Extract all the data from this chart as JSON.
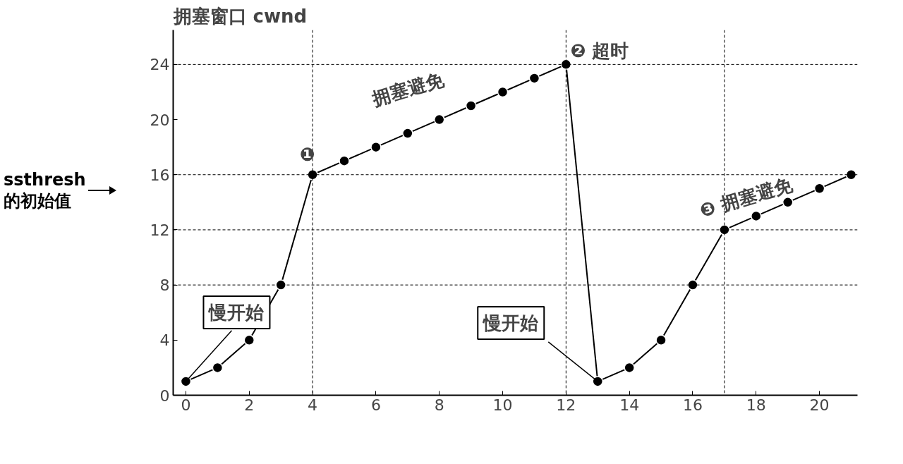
{
  "chart_data": {
    "type": "line",
    "ylabel": "拥塞窗口 cwnd",
    "x": [
      0,
      1,
      2,
      3,
      4,
      5,
      6,
      7,
      8,
      9,
      10,
      11,
      12,
      13,
      14,
      15,
      16,
      17,
      18,
      19,
      20,
      21
    ],
    "series": [
      {
        "color": "#000000",
        "values": [
          1,
          2,
          4,
          8,
          16,
          17,
          18,
          19,
          20,
          21,
          22,
          23,
          24,
          1,
          2,
          4,
          8,
          12,
          13,
          14,
          15,
          16
        ]
      }
    ],
    "xlim": [
      -0.4,
      21.2
    ],
    "ylim": [
      0,
      26.5
    ],
    "xticks": [
      0,
      2,
      4,
      6,
      8,
      10,
      12,
      14,
      16,
      18,
      20
    ],
    "yticks": [
      0,
      4,
      8,
      12,
      16,
      20,
      24
    ],
    "ref_lines": [
      {
        "axis": "y",
        "value": 24,
        "line_style": "dashed"
      },
      {
        "axis": "y",
        "value": 16,
        "line_style": "dashed"
      },
      {
        "axis": "y",
        "value": 12,
        "line_style": "dashed"
      },
      {
        "axis": "y",
        "value": 8,
        "line_style": "dashed"
      },
      {
        "axis": "x",
        "value": 4,
        "line_style": "dashed"
      },
      {
        "axis": "x",
        "value": 12,
        "line_style": "dashed"
      },
      {
        "axis": "x",
        "value": 17,
        "line_style": "dashed"
      }
    ],
    "annotations": [
      {
        "text": "❶",
        "x": 4,
        "y": 16
      },
      {
        "text": "拥塞避免",
        "x": 8,
        "y": 20
      },
      {
        "text": "❷ 超时",
        "x": 12,
        "y": 24
      },
      {
        "text": "❸ 拥塞避免",
        "x": 17,
        "y": 12
      },
      {
        "text": "慢开始",
        "x": 0,
        "y": 1
      },
      {
        "text": "慢开始",
        "x": 13,
        "y": 1
      },
      "ssthresh 的初始值"
    ],
    "marker": "circle",
    "line_style": "solid",
    "grid": false
  }
}
